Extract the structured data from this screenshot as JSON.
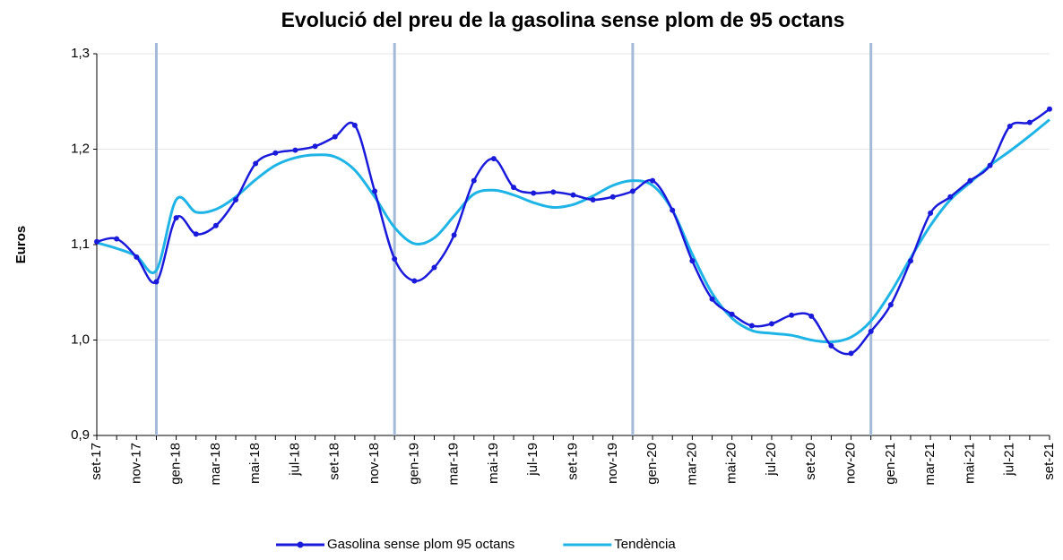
{
  "chart_data": {
    "type": "line",
    "title": "Evolució del preu de la gasolina sense plom de 95 octans",
    "ylabel": "Euros",
    "categories": [
      "set-17",
      null,
      "nov-17",
      null,
      "gen-18",
      null,
      "mar-18",
      null,
      "mai-18",
      null,
      "jul-18",
      null,
      "set-18",
      null,
      "nov-18",
      null,
      "gen-19",
      null,
      "mar-19",
      null,
      "mai-19",
      null,
      "jul-19",
      null,
      "set-19",
      null,
      "nov-19",
      null,
      "gen-20",
      null,
      "mar-20",
      null,
      "mai-20",
      null,
      "jul-20",
      null,
      "set-20",
      null,
      "nov-20",
      null,
      "gen-21",
      null,
      "mar-21",
      null,
      "mai-21",
      null,
      "jul-21",
      null,
      "set-21"
    ],
    "series": [
      {
        "name": "Gasolina sense plom 95 octans",
        "color": "#1a1adb",
        "markers": true,
        "values": [
          1.103,
          1.106,
          1.087,
          1.061,
          1.128,
          1.111,
          1.12,
          1.147,
          1.185,
          1.196,
          1.199,
          1.203,
          1.213,
          1.225,
          1.156,
          1.085,
          1.062,
          1.076,
          1.11,
          1.167,
          1.19,
          1.16,
          1.154,
          1.155,
          1.152,
          1.147,
          1.15,
          1.156,
          1.167,
          1.136,
          1.083,
          1.043,
          1.027,
          1.015,
          1.017,
          1.026,
          1.025,
          0.994,
          0.986,
          1.009,
          1.037,
          1.083,
          1.133,
          1.15,
          1.167,
          1.183,
          1.224,
          1.228,
          1.242
        ]
      },
      {
        "name": "Tendència",
        "color": "#1fb4e6",
        "markers": false,
        "values": [
          1.102,
          1.096,
          1.088,
          1.073,
          1.147,
          1.134,
          1.137,
          1.15,
          1.168,
          1.183,
          1.191,
          1.194,
          1.192,
          1.178,
          1.15,
          1.118,
          1.101,
          1.107,
          1.13,
          1.153,
          1.157,
          1.152,
          1.144,
          1.139,
          1.142,
          1.151,
          1.162,
          1.167,
          1.162,
          1.136,
          1.09,
          1.049,
          1.023,
          1.01,
          1.007,
          1.005,
          1.0,
          0.998,
          1.003,
          1.02,
          1.05,
          1.086,
          1.12,
          1.147,
          1.165,
          1.183,
          1.198,
          1.214,
          1.231
        ]
      }
    ],
    "ylim": [
      0.9,
      1.3
    ],
    "yticks": [
      {
        "value": 0.9,
        "label": "0,9"
      },
      {
        "value": 1.0,
        "label": "1,0"
      },
      {
        "value": 1.1,
        "label": "1,1"
      },
      {
        "value": 1.2,
        "label": "1,2"
      },
      {
        "value": 1.3,
        "label": "1,3"
      }
    ],
    "grid": true,
    "legend": "bottom"
  }
}
